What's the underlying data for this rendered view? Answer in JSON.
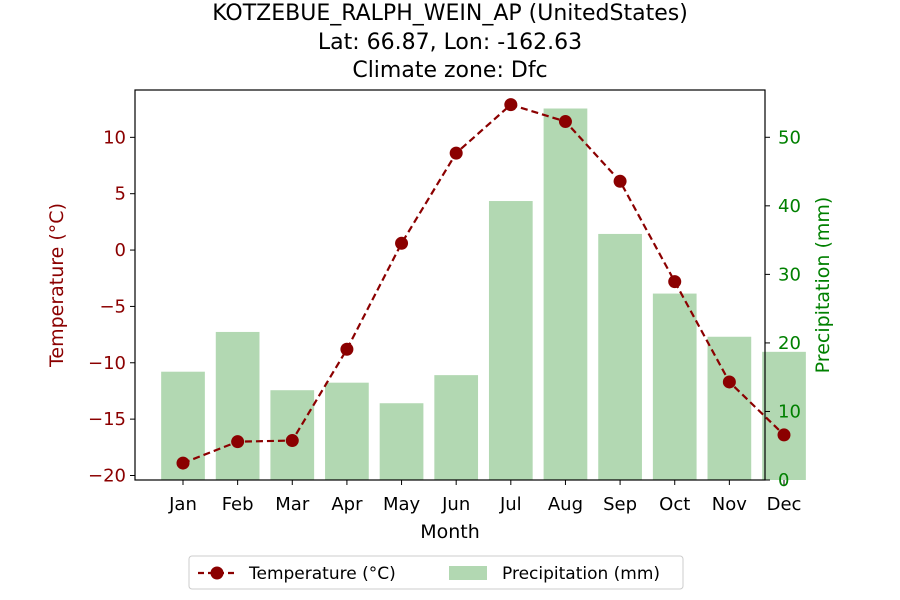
{
  "chart_data": {
    "type": "bar+line",
    "title_lines": [
      "KOTZEBUE_RALPH_WEIN_AP (UnitedStates)",
      "Lat: 66.87, Lon: -162.63",
      "Climate zone: Dfc"
    ],
    "xlabel": "Month",
    "categories": [
      "Jan",
      "Feb",
      "Mar",
      "Apr",
      "May",
      "Jun",
      "Jul",
      "Aug",
      "Sep",
      "Oct",
      "Nov",
      "Dec"
    ],
    "temperature": {
      "name": "Temperature (°C)",
      "axis_label": "Temperature (°C)",
      "color": "#8b0000",
      "values": [
        -18.9,
        -17.0,
        -16.9,
        -8.8,
        0.6,
        8.6,
        12.9,
        11.4,
        6.1,
        -2.8,
        -11.7,
        -16.4
      ],
      "ylim": [
        -20.4,
        14.2
      ],
      "ticks": [
        -20,
        -15,
        -10,
        -5,
        0,
        5,
        10
      ],
      "tick_labels": [
        "−20",
        "−15",
        "−10",
        "−5",
        "0",
        "5",
        "10"
      ]
    },
    "precipitation": {
      "name": "Precipitation (mm)",
      "axis_label": "Precipitation (mm)",
      "color": "#008000",
      "bar_color": "#b2d8b2",
      "values": [
        15.8,
        21.6,
        13.1,
        14.2,
        11.2,
        15.3,
        40.7,
        54.2,
        35.9,
        27.2,
        20.9,
        18.7
      ],
      "ylim": [
        0,
        56.9
      ],
      "ticks": [
        0,
        10,
        20,
        30,
        40,
        50
      ],
      "tick_labels": [
        "0",
        "10",
        "20",
        "30",
        "40",
        "50"
      ]
    },
    "legend": {
      "placement": "bottom-center",
      "entries": [
        "Temperature (°C)",
        "Precipitation (mm)"
      ]
    },
    "grid": false
  }
}
